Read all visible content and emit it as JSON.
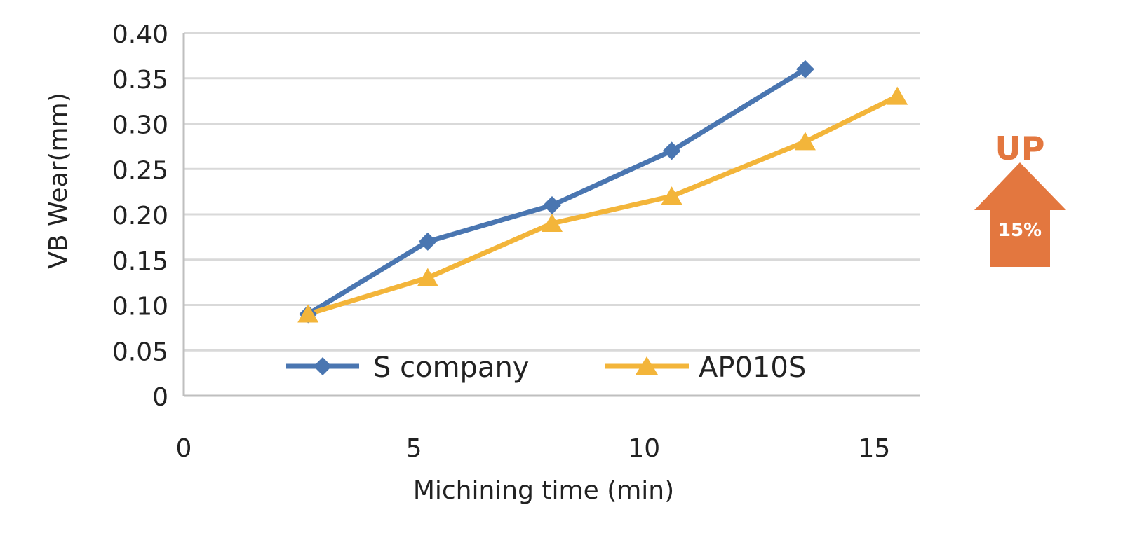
{
  "chart_data": {
    "type": "line",
    "title": "",
    "xlabel": "Michining time (min)",
    "ylabel": "VB Wear(mm)",
    "xlim": [
      0,
      16
    ],
    "ylim": [
      0,
      0.4
    ],
    "x_ticks": [
      "0",
      "5",
      "10",
      "15"
    ],
    "y_ticks": [
      "0",
      "0.05",
      "0.10",
      "0.15",
      "0.20",
      "0.25",
      "0.30",
      "0.35",
      "0.40"
    ],
    "grid": "horizontal",
    "legend_position": "bottom-inside",
    "series": [
      {
        "name": "S company",
        "color": "#4a76b1",
        "marker": "diamond",
        "x": [
          2.7,
          5.3,
          8.0,
          10.6,
          13.5
        ],
        "y": [
          0.09,
          0.17,
          0.21,
          0.27,
          0.36
        ]
      },
      {
        "name": "AP010S",
        "color": "#f3b53a",
        "marker": "triangle",
        "x": [
          2.7,
          5.3,
          8.0,
          10.6,
          13.5,
          15.5
        ],
        "y": [
          0.09,
          0.13,
          0.19,
          0.22,
          0.28,
          0.33
        ]
      }
    ]
  },
  "callout": {
    "label": "UP",
    "value": "15%",
    "color": "#e3773f",
    "icon": "up-arrow-icon"
  }
}
